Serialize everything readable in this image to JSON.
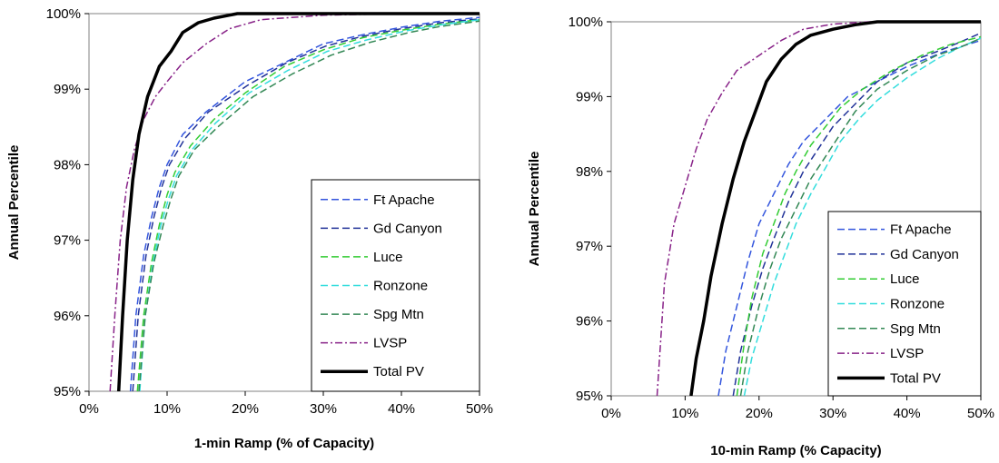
{
  "chart_data": [
    {
      "type": "line",
      "xlabel": "1-min Ramp (% of Capacity)",
      "ylabel": "Annual Percentile",
      "xlim": [
        0,
        50
      ],
      "ylim": [
        95,
        100
      ],
      "x_ticks": [
        "0%",
        "10%",
        "20%",
        "30%",
        "40%",
        "50%"
      ],
      "y_ticks": [
        "95%",
        "96%",
        "97%",
        "98%",
        "99%",
        "100%"
      ],
      "grid": false,
      "legend_position": "lower-right",
      "series": [
        {
          "name": "Ft Apache",
          "color": "#3355dd",
          "dash": "dashed",
          "points": [
            [
              5.3,
              95
            ],
            [
              6,
              96
            ],
            [
              7,
              96.8
            ],
            [
              8,
              97.3
            ],
            [
              9,
              97.7
            ],
            [
              10,
              98
            ],
            [
              12,
              98.4
            ],
            [
              15,
              98.7
            ],
            [
              20,
              99.1
            ],
            [
              25,
              99.35
            ],
            [
              30,
              99.6
            ],
            [
              35,
              99.72
            ],
            [
              40,
              99.82
            ],
            [
              45,
              99.9
            ],
            [
              50,
              99.95
            ]
          ]
        },
        {
          "name": "Gd Canyon",
          "color": "#223399",
          "dash": "dashed",
          "points": [
            [
              5.6,
              95
            ],
            [
              6.3,
              96
            ],
            [
              7.3,
              96.8
            ],
            [
              8.3,
              97.3
            ],
            [
              9.3,
              97.7
            ],
            [
              10.3,
              98
            ],
            [
              12.3,
              98.35
            ],
            [
              15.3,
              98.7
            ],
            [
              20.3,
              99.05
            ],
            [
              25.3,
              99.35
            ],
            [
              30.3,
              99.57
            ],
            [
              35,
              99.7
            ],
            [
              40,
              99.8
            ],
            [
              45,
              99.88
            ],
            [
              50,
              99.93
            ]
          ]
        },
        {
          "name": "Luce",
          "color": "#33cc33",
          "dash": "dashed",
          "points": [
            [
              6.2,
              95
            ],
            [
              7,
              96
            ],
            [
              8,
              96.7
            ],
            [
              9,
              97.2
            ],
            [
              10,
              97.6
            ],
            [
              11,
              97.9
            ],
            [
              13,
              98.25
            ],
            [
              16,
              98.6
            ],
            [
              20,
              98.95
            ],
            [
              25,
              99.3
            ],
            [
              30,
              99.52
            ],
            [
              35,
              99.68
            ],
            [
              40,
              99.78
            ],
            [
              45,
              99.86
            ],
            [
              50,
              99.92
            ]
          ]
        },
        {
          "name": "Ronzone",
          "color": "#33dddd",
          "dash": "dashed",
          "points": [
            [
              6.5,
              95
            ],
            [
              7.2,
              96
            ],
            [
              8.2,
              96.7
            ],
            [
              9.2,
              97.2
            ],
            [
              10.2,
              97.55
            ],
            [
              11.2,
              97.85
            ],
            [
              13.2,
              98.2
            ],
            [
              16.2,
              98.55
            ],
            [
              20.5,
              98.95
            ],
            [
              25.5,
              99.25
            ],
            [
              30.5,
              99.5
            ],
            [
              35.5,
              99.65
            ],
            [
              40.5,
              99.77
            ],
            [
              45,
              99.85
            ],
            [
              50,
              99.92
            ]
          ]
        },
        {
          "name": "Spg Mtn",
          "color": "#338855",
          "dash": "dashed",
          "points": [
            [
              6.4,
              95
            ],
            [
              7.2,
              96
            ],
            [
              8.3,
              96.7
            ],
            [
              9.5,
              97.2
            ],
            [
              10.5,
              97.55
            ],
            [
              11.5,
              97.85
            ],
            [
              13.5,
              98.2
            ],
            [
              16.5,
              98.5
            ],
            [
              21,
              98.9
            ],
            [
              26,
              99.2
            ],
            [
              31,
              99.45
            ],
            [
              36,
              99.62
            ],
            [
              41,
              99.75
            ],
            [
              45,
              99.83
            ],
            [
              50,
              99.9
            ]
          ]
        },
        {
          "name": "LVSP",
          "color": "#882288",
          "dash": "dashdot",
          "points": [
            [
              2.7,
              95
            ],
            [
              3.3,
              96
            ],
            [
              4,
              97
            ],
            [
              4.8,
              97.7
            ],
            [
              5.8,
              98.2
            ],
            [
              7,
              98.6
            ],
            [
              8.5,
              98.9
            ],
            [
              10,
              99.1
            ],
            [
              12,
              99.35
            ],
            [
              15,
              99.6
            ],
            [
              18,
              99.8
            ],
            [
              22,
              99.92
            ],
            [
              30,
              99.98
            ],
            [
              40,
              100
            ],
            [
              50,
              100
            ]
          ]
        },
        {
          "name": "Total PV",
          "color": "#000000",
          "dash": "solid",
          "points": [
            [
              3.8,
              95
            ],
            [
              4.3,
              96
            ],
            [
              4.9,
              97
            ],
            [
              5.6,
              97.8
            ],
            [
              6.4,
              98.4
            ],
            [
              7.5,
              98.9
            ],
            [
              9,
              99.3
            ],
            [
              10.5,
              99.5
            ],
            [
              12,
              99.75
            ],
            [
              14,
              99.88
            ],
            [
              16,
              99.94
            ],
            [
              19,
              100
            ],
            [
              50,
              100
            ]
          ]
        }
      ]
    },
    {
      "type": "line",
      "xlabel": "10-min Ramp (% Capacity)",
      "ylabel": "Annual Percentile",
      "xlim": [
        0,
        50
      ],
      "ylim": [
        95,
        100
      ],
      "x_ticks": [
        "0%",
        "10%",
        "20%",
        "30%",
        "40%",
        "50%"
      ],
      "y_ticks": [
        "95%",
        "96%",
        "97%",
        "98%",
        "99%",
        "100%"
      ],
      "grid": false,
      "legend_position": "lower-right",
      "series": [
        {
          "name": "Ft Apache",
          "color": "#3355dd",
          "dash": "dashed",
          "points": [
            [
              14.5,
              95
            ],
            [
              15.5,
              95.6
            ],
            [
              17,
              96.2
            ],
            [
              18.5,
              96.8
            ],
            [
              20,
              97.3
            ],
            [
              22,
              97.7
            ],
            [
              24,
              98.1
            ],
            [
              26,
              98.4
            ],
            [
              28,
              98.6
            ],
            [
              30,
              98.8
            ],
            [
              32,
              99
            ],
            [
              35,
              99.15
            ],
            [
              40,
              99.4
            ],
            [
              45,
              99.6
            ],
            [
              50,
              99.75
            ]
          ]
        },
        {
          "name": "Gd Canyon",
          "color": "#223399",
          "dash": "dashed",
          "points": [
            [
              16.5,
              95
            ],
            [
              17.5,
              95.6
            ],
            [
              19,
              96.2
            ],
            [
              20.5,
              96.7
            ],
            [
              22,
              97.1
            ],
            [
              24,
              97.6
            ],
            [
              26,
              98
            ],
            [
              28,
              98.3
            ],
            [
              30,
              98.6
            ],
            [
              33,
              98.9
            ],
            [
              36,
              99.2
            ],
            [
              40,
              99.45
            ],
            [
              44,
              99.6
            ],
            [
              47,
              99.72
            ],
            [
              50,
              99.85
            ]
          ]
        },
        {
          "name": "Luce",
          "color": "#33cc33",
          "dash": "dashed",
          "points": [
            [
              17,
              95
            ],
            [
              18,
              95.7
            ],
            [
              19,
              96.3
            ],
            [
              20.5,
              96.9
            ],
            [
              22,
              97.3
            ],
            [
              23.5,
              97.7
            ],
            [
              25,
              98
            ],
            [
              27,
              98.35
            ],
            [
              29,
              98.6
            ],
            [
              31,
              98.85
            ],
            [
              34,
              99.1
            ],
            [
              38,
              99.35
            ],
            [
              42,
              99.55
            ],
            [
              46,
              99.7
            ],
            [
              50,
              99.8
            ]
          ]
        },
        {
          "name": "Ronzone",
          "color": "#33dddd",
          "dash": "dashed",
          "points": [
            [
              18,
              95
            ],
            [
              19,
              95.5
            ],
            [
              20.5,
              96
            ],
            [
              22,
              96.5
            ],
            [
              23.5,
              96.9
            ],
            [
              25,
              97.3
            ],
            [
              27,
              97.7
            ],
            [
              29,
              98.05
            ],
            [
              31,
              98.4
            ],
            [
              33.5,
              98.7
            ],
            [
              36,
              98.95
            ],
            [
              40,
              99.25
            ],
            [
              44,
              99.5
            ],
            [
              47,
              99.65
            ],
            [
              50,
              99.78
            ]
          ]
        },
        {
          "name": "Spg Mtn",
          "color": "#338855",
          "dash": "dashed",
          "points": [
            [
              17.5,
              95
            ],
            [
              18.5,
              95.6
            ],
            [
              20,
              96.2
            ],
            [
              21.5,
              96.7
            ],
            [
              23,
              97.1
            ],
            [
              25,
              97.5
            ],
            [
              27,
              97.9
            ],
            [
              29,
              98.2
            ],
            [
              31,
              98.5
            ],
            [
              33,
              98.8
            ],
            [
              36,
              99.1
            ],
            [
              40,
              99.35
            ],
            [
              44,
              99.55
            ],
            [
              47,
              99.65
            ],
            [
              50,
              99.78
            ]
          ]
        },
        {
          "name": "LVSP",
          "color": "#882288",
          "dash": "dashdot",
          "points": [
            [
              6.2,
              95
            ],
            [
              7.2,
              96.5
            ],
            [
              8.5,
              97.3
            ],
            [
              10,
              97.8
            ],
            [
              11.5,
              98.3
            ],
            [
              13,
              98.7
            ],
            [
              15,
              99.05
            ],
            [
              17,
              99.35
            ],
            [
              20,
              99.55
            ],
            [
              23,
              99.75
            ],
            [
              26,
              99.9
            ],
            [
              30,
              99.97
            ],
            [
              35,
              100
            ],
            [
              50,
              100
            ]
          ]
        },
        {
          "name": "Total PV",
          "color": "#000000",
          "dash": "solid",
          "points": [
            [
              10.8,
              95
            ],
            [
              11.5,
              95.5
            ],
            [
              12.5,
              96
            ],
            [
              13.5,
              96.6
            ],
            [
              15,
              97.3
            ],
            [
              16.5,
              97.9
            ],
            [
              18,
              98.4
            ],
            [
              19.5,
              98.8
            ],
            [
              21,
              99.2
            ],
            [
              23,
              99.5
            ],
            [
              25,
              99.7
            ],
            [
              27,
              99.82
            ],
            [
              30,
              99.9
            ],
            [
              33,
              99.96
            ],
            [
              36,
              100
            ],
            [
              50,
              100
            ]
          ]
        }
      ]
    }
  ]
}
